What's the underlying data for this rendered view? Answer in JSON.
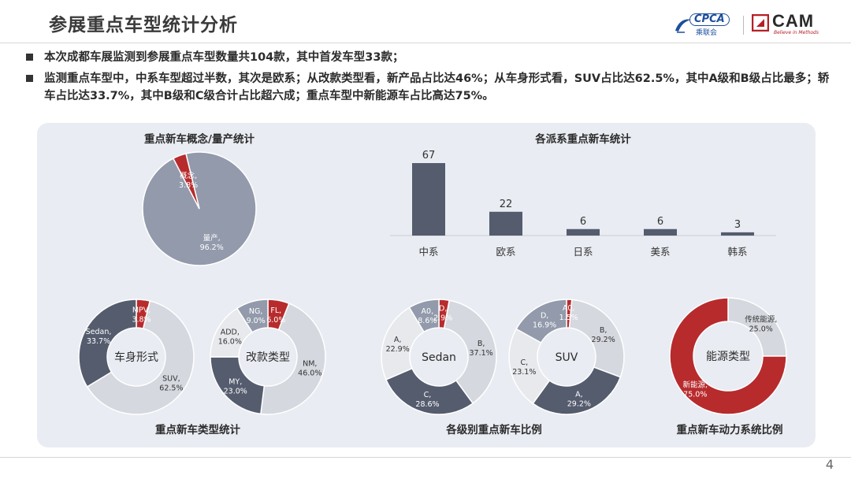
{
  "header": {
    "title": "参展重点车型统计分析",
    "logo_cpca_text": "CPCA",
    "logo_cpca_sub": "乘联会",
    "logo_cam_text": "CAM",
    "logo_cam_tagline": "Believe in Methods"
  },
  "bullets": [
    "本次成都车展监测到参展重点车型数量共104款，其中首发车型33款；",
    "监测重点车型中，中系车型超过半数，其次是欧系；从改款类型看，新产品占比达46%；从车身形式看，SUV占比达62.5%，其中A级和B级占比最多；轿车占比达33.7%，其中B级和C级合计占比超六成；重点车型中新能源车占比高达75%。"
  ],
  "page_number": "4",
  "colors": {
    "dark": "#555c6e",
    "mid": "#929aab",
    "light": "#d5d8df",
    "red": "#b72b2d",
    "panel": "#e9ecf2"
  },
  "chart_data": [
    {
      "type": "pie",
      "title": "重点新车概念/量产统计",
      "slices": [
        {
          "name": "量产",
          "value": 96.2,
          "label": "96.2%",
          "color": "#929aab"
        },
        {
          "name": "概念",
          "value": 3.8,
          "label": "3.8%",
          "color": "#b72b2d"
        }
      ]
    },
    {
      "type": "bar",
      "title": "各派系重点新车统计",
      "categories": [
        "中系",
        "欧系",
        "日系",
        "美系",
        "韩系"
      ],
      "values": [
        67,
        22,
        6,
        6,
        3
      ],
      "ylim": [
        0,
        67
      ]
    },
    {
      "type": "pie",
      "center_label": "车身形式",
      "group_title": "重点新车类型统计",
      "slices": [
        {
          "name": "MPV",
          "value": 3.8,
          "label": "3.8%",
          "color": "#b72b2d"
        },
        {
          "name": "SUV",
          "value": 62.5,
          "label": "62.5%",
          "color": "#d5d8df"
        },
        {
          "name": "Sedan",
          "value": 33.7,
          "label": "33.7%",
          "color": "#555c6e"
        }
      ]
    },
    {
      "type": "pie",
      "center_label": "改款类型",
      "group_title": "重点新车类型统计",
      "slices": [
        {
          "name": "FL",
          "value": 6.0,
          "label": "6.0%",
          "color": "#b72b2d"
        },
        {
          "name": "NM",
          "value": 46.0,
          "label": "46.0%",
          "color": "#d5d8df"
        },
        {
          "name": "MY",
          "value": 23.0,
          "label": "23.0%",
          "color": "#555c6e"
        },
        {
          "name": "ADD",
          "value": 16.0,
          "label": "16.0%",
          "color": "#e8e9ec"
        },
        {
          "name": "NG",
          "value": 9.0,
          "label": "9.0%",
          "color": "#929aab"
        }
      ]
    },
    {
      "type": "pie",
      "center_label": "Sedan",
      "group_title": "各级别重点新车比例",
      "slices": [
        {
          "name": "D",
          "value": 2.9,
          "label": "2.9%",
          "color": "#b72b2d"
        },
        {
          "name": "B",
          "value": 37.1,
          "label": "37.1%",
          "color": "#d5d8df"
        },
        {
          "name": "C",
          "value": 28.6,
          "label": "28.6%",
          "color": "#555c6e"
        },
        {
          "name": "A",
          "value": 22.9,
          "label": "22.9%",
          "color": "#e8e9ec"
        },
        {
          "name": "A0",
          "value": 8.6,
          "label": "8.6%",
          "color": "#929aab"
        }
      ]
    },
    {
      "type": "pie",
      "center_label": "SUV",
      "group_title": "各级别重点新车比例",
      "slices": [
        {
          "name": "A0",
          "value": 1.5,
          "label": "1.5%",
          "color": "#b72b2d"
        },
        {
          "name": "B",
          "value": 29.2,
          "label": "29.2%",
          "color": "#d5d8df"
        },
        {
          "name": "A",
          "value": 29.2,
          "label": "29.2%",
          "color": "#555c6e"
        },
        {
          "name": "C",
          "value": 23.1,
          "label": "23.1%",
          "color": "#e8e9ec"
        },
        {
          "name": "D",
          "value": 16.9,
          "label": "16.9%",
          "color": "#929aab"
        }
      ]
    },
    {
      "type": "pie",
      "center_label": "能源类型",
      "group_title": "重点新车动力系统比例",
      "slices": [
        {
          "name": "传统能源",
          "value": 25.0,
          "label": "25.0%",
          "color": "#d5d8df"
        },
        {
          "name": "新能源",
          "value": 75.0,
          "label": "75.0%",
          "color": "#b72b2d"
        }
      ]
    }
  ]
}
